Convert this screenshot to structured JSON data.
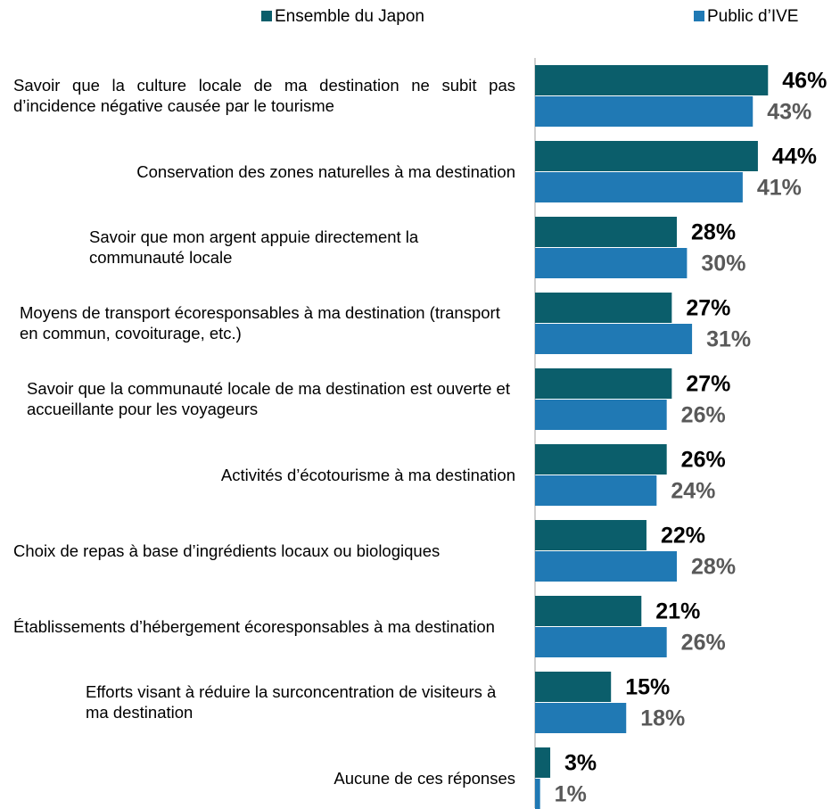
{
  "chart_data": {
    "type": "bar",
    "orientation": "horizontal",
    "categories": [
      "Savoir que la culture locale de ma destination ne subit pas d’incidence négative causée par le tourisme",
      "Conservation des zones naturelles à ma destination",
      "Savoir que mon argent appuie directement la communauté locale",
      "Moyens de transport écoresponsables à ma destination (transport en commun, covoiturage, etc.)",
      "Savoir que la communauté locale de ma destination est ouverte et accueillante pour les voyageurs",
      "Activités d’écotourisme à ma destination",
      "Choix de repas à base d’ingrédients locaux ou biologiques",
      "Établissements d’hébergement écoresponsables à ma destination",
      "Efforts visant à réduire la surconcentration de visiteurs à ma destination",
      "Aucune de ces réponses"
    ],
    "series": [
      {
        "name": "Ensemble du Japon",
        "color": "#0b5e6b",
        "label_color": "#000000",
        "values": [
          46,
          44,
          28,
          27,
          27,
          26,
          22,
          21,
          15,
          3
        ],
        "value_labels": [
          "46%",
          "44%",
          "28%",
          "27%",
          "27%",
          "26%",
          "22%",
          "21%",
          "15%",
          "3%"
        ]
      },
      {
        "name": "Public d’IVE",
        "color": "#2079b4",
        "label_color": "#595959",
        "values": [
          43,
          41,
          30,
          31,
          26,
          24,
          28,
          26,
          18,
          1
        ],
        "value_labels": [
          "43%",
          "41%",
          "30%",
          "31%",
          "26%",
          "24%",
          "28%",
          "26%",
          "18%",
          "1%"
        ]
      }
    ],
    "legend": "top"
  }
}
